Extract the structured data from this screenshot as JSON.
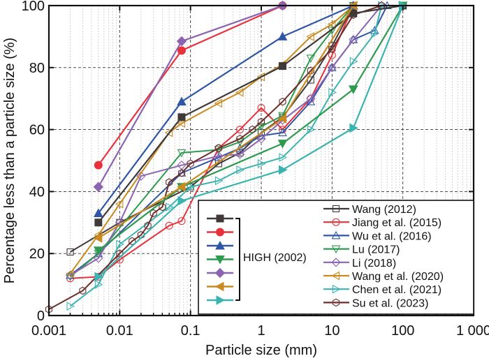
{
  "chart_data": {
    "type": "line",
    "title": "",
    "xlabel": "Particle size (mm)",
    "ylabel": "Percentage less than a particle size (%)",
    "xscale": "log",
    "xlim": [
      0.001,
      1000
    ],
    "ylim": [
      0,
      100
    ],
    "x_ticks": [
      0.001,
      0.01,
      0.1,
      1,
      10,
      100,
      1000
    ],
    "x_tick_labels": [
      "0.001",
      "0.01",
      "0.1",
      "1",
      "10",
      "100",
      "1 000"
    ],
    "y_ticks": [
      0,
      20,
      40,
      60,
      80,
      100
    ],
    "y_tick_labels": [
      "0",
      "20",
      "40",
      "60",
      "80",
      "100"
    ],
    "grid": true,
    "legend_position": "bottom-right",
    "group_label": "HIGH (2002)",
    "series": [
      {
        "name": "HIGH (2002) - 1",
        "group": "HIGH (2002)",
        "color": "#3f3a39",
        "marker": "square",
        "filled": true,
        "x": [
          0.005,
          0.075,
          2,
          20,
          100
        ],
        "y": [
          30,
          64,
          80.5,
          97.5,
          100
        ]
      },
      {
        "name": "HIGH (2002) - 2",
        "group": "HIGH (2002)",
        "color": "#e8313b",
        "marker": "circle",
        "filled": true,
        "x": [
          0.005,
          0.075,
          2
        ],
        "y": [
          48.5,
          85.5,
          100
        ]
      },
      {
        "name": "HIGH (2002) - 3",
        "group": "HIGH (2002)",
        "color": "#2f56a6",
        "marker": "triangle-up",
        "filled": true,
        "x": [
          0.005,
          0.075,
          2,
          20
        ],
        "y": [
          33,
          69,
          90,
          100
        ]
      },
      {
        "name": "HIGH (2002) - 4",
        "group": "HIGH (2002)",
        "color": "#2e9a4f",
        "marker": "triangle-down",
        "filled": true,
        "x": [
          0.005,
          0.075,
          2,
          20,
          100
        ],
        "y": [
          21,
          41.5,
          55.5,
          73,
          100
        ]
      },
      {
        "name": "HIGH (2002) - 5",
        "group": "HIGH (2002)",
        "color": "#8b63b0",
        "marker": "diamond",
        "filled": true,
        "x": [
          0.005,
          0.075,
          2
        ],
        "y": [
          41.5,
          88.5,
          100
        ]
      },
      {
        "name": "HIGH (2002) - 6",
        "group": "HIGH (2002)",
        "color": "#c98a1f",
        "marker": "triangle-left",
        "filled": true,
        "x": [
          0.005,
          0.075,
          2,
          20
        ],
        "y": [
          25,
          41.5,
          63.5,
          100
        ]
      },
      {
        "name": "HIGH (2002) - 7",
        "group": "HIGH (2002)",
        "color": "#3bb3b0",
        "marker": "triangle-right",
        "filled": true,
        "x": [
          0.005,
          0.075,
          2,
          20,
          100
        ],
        "y": [
          12.5,
          37,
          47,
          60.5,
          100
        ]
      },
      {
        "name": "Wang (2012)",
        "color": "#3f3a39",
        "marker": "square",
        "filled": false,
        "x": [
          0.002,
          0.01,
          0.1,
          0.25,
          0.5,
          1,
          2,
          5,
          10,
          20
        ],
        "y": [
          20.5,
          30,
          41.5,
          49,
          52.5,
          59,
          64,
          76,
          87,
          100
        ]
      },
      {
        "name": "Jiang et al. (2015)",
        "color": "#e8313b",
        "marker": "circle",
        "filled": false,
        "x": [
          0.002,
          0.005,
          0.01,
          0.05,
          0.075,
          0.25,
          0.5,
          1,
          2,
          5,
          10,
          20
        ],
        "y": [
          12,
          12.5,
          18,
          29,
          30.5,
          54,
          60,
          67,
          60,
          70,
          84,
          100
        ]
      },
      {
        "name": "Wu et al. (2016)",
        "color": "#2f56a6",
        "marker": "triangle-up",
        "filled": false,
        "x": [
          0.002,
          0.005,
          0.075,
          0.25,
          0.5,
          1,
          2,
          5,
          10,
          20,
          40,
          60
        ],
        "y": [
          13,
          20,
          46,
          51,
          54,
          58,
          59,
          69,
          80,
          89,
          92,
          100
        ]
      },
      {
        "name": "Lu (2017)",
        "color": "#2e9a4f",
        "marker": "triangle-down",
        "filled": false,
        "x": [
          0.002,
          0.005,
          0.075,
          0.25,
          0.5,
          1,
          2,
          5,
          10,
          20
        ],
        "y": [
          12.5,
          20,
          52.5,
          53.5,
          56,
          61,
          64.5,
          83,
          92,
          100
        ]
      },
      {
        "name": "Li (2018)",
        "color": "#8b63b0",
        "marker": "diamond",
        "filled": false,
        "x": [
          0.002,
          0.005,
          0.01,
          0.02,
          0.075,
          0.25,
          0.5,
          1,
          2,
          5,
          10,
          20,
          50
        ],
        "y": [
          13,
          18.5,
          30,
          45,
          48.5,
          51.5,
          52,
          57,
          63,
          70,
          80,
          89,
          100
        ]
      },
      {
        "name": "Wang et al. (2020)",
        "color": "#c98a1f",
        "marker": "triangle-left",
        "filled": false,
        "x": [
          0.002,
          0.005,
          0.01,
          0.05,
          0.075,
          0.25,
          0.5,
          1,
          2,
          5,
          10,
          20
        ],
        "y": [
          13.5,
          26,
          36,
          59,
          62,
          68.5,
          72,
          77,
          81,
          90,
          94,
          100
        ]
      },
      {
        "name": "Chen et al. (2021)",
        "color": "#3bb3b0",
        "marker": "triangle-right",
        "filled": false,
        "x": [
          0.002,
          0.005,
          0.01,
          0.05,
          0.1,
          0.25,
          0.5,
          1,
          2,
          5,
          10,
          20,
          40,
          50
        ],
        "y": [
          3,
          10,
          23,
          35,
          41.5,
          43.5,
          47,
          49,
          51,
          60,
          72,
          82,
          91,
          100
        ]
      },
      {
        "name": "Su et al. (2023)",
        "color": "#6b2e2a",
        "marker": "hexagon",
        "filled": false,
        "x": [
          0.001,
          0.003,
          0.01,
          0.015,
          0.02,
          0.025,
          0.03,
          0.04,
          0.05,
          0.075,
          0.1,
          0.25,
          0.5,
          0.75,
          1,
          2,
          5,
          10,
          20,
          50
        ],
        "y": [
          2,
          8,
          20,
          24,
          26,
          29,
          33,
          35,
          43,
          46,
          49,
          54,
          57,
          60,
          62.5,
          69,
          79,
          86,
          97,
          100
        ]
      }
    ]
  }
}
